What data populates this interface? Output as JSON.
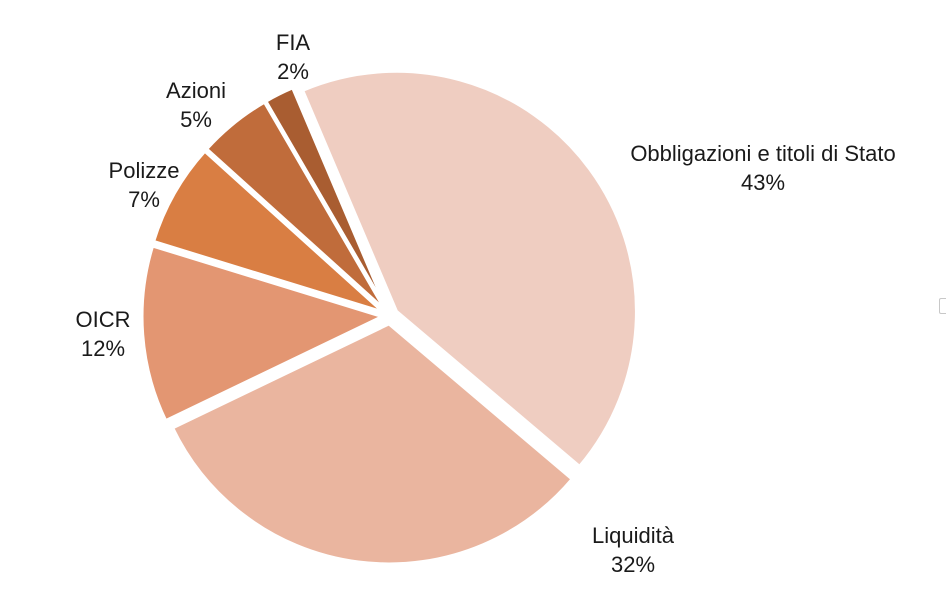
{
  "chart_data": {
    "type": "pie",
    "title": "",
    "slices": [
      {
        "label": "Obbligazioni e titoli di Stato",
        "value": 43,
        "value_label": "43%",
        "color": "#efcdc1"
      },
      {
        "label": "Liquidità",
        "value": 32,
        "value_label": "32%",
        "color": "#eab59f"
      },
      {
        "label": "OICR",
        "value": 12,
        "value_label": "12%",
        "color": "#e39672"
      },
      {
        "label": "Polizze",
        "value": 7,
        "value_label": "7%",
        "color": "#d97e43"
      },
      {
        "label": "Azioni",
        "value": 5,
        "value_label": "5%",
        "color": "#c06c3b"
      },
      {
        "label": "FIA",
        "value": 2,
        "value_label": "2%",
        "color": "#a95d31"
      }
    ],
    "start_angle_deg": 337,
    "direction": "clockwise",
    "legend": "none",
    "slice_separator_color": "#ffffff"
  }
}
